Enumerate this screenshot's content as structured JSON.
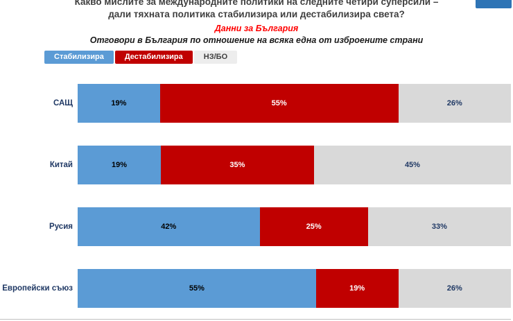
{
  "header": {
    "title_line1": "Какво мислите за международните политики на следните четири суперсили –",
    "title_line2": "дали тяхната политика стабилизира или дестабилизира света?",
    "subtitle_red": "Данни за България",
    "subtitle_bold": "Отговори в България по отношение на всяка една от изброените страни"
  },
  "colors": {
    "stabilize_blue": "#5B9BD5",
    "destabilize_red": "#C00000",
    "dk_gray": "#D9D9D9",
    "category_navy": "#1F3864",
    "subtitle_red": "#FF0000",
    "logo_blue": "#2E74B5"
  },
  "legend": {
    "items": [
      {
        "label": "Стабилизира",
        "bg": "#5B9BD5",
        "fg": "#ffffff"
      },
      {
        "label": "Дестабилизира",
        "bg": "#C00000",
        "fg": "#ffffff"
      },
      {
        "label": "НЗ/БО",
        "bg": "#EDEDED",
        "fg": "#404040"
      }
    ]
  },
  "chart_data": {
    "type": "bar",
    "orientation": "horizontal",
    "stacked": true,
    "title": "Отговори в България по отношение на всяка една от изброените страни",
    "categories": [
      "САЩ",
      "Китай",
      "Русия",
      "Европейски съюз"
    ],
    "series": [
      {
        "name": "Стабилизира",
        "color": "#5B9BD5",
        "label_color": "#000000",
        "values": [
          19,
          19,
          42,
          55
        ]
      },
      {
        "name": "Дестабилизира",
        "color": "#C00000",
        "label_color": "#ffffff",
        "values": [
          55,
          35,
          25,
          19
        ]
      },
      {
        "name": "НЗ/БО",
        "color": "#D9D9D9",
        "label_color": "#1F3864",
        "values": [
          26,
          45,
          33,
          26
        ]
      }
    ],
    "value_format": "percent",
    "xlim": [
      0,
      100
    ],
    "legend_position": "top-left",
    "grid": false
  }
}
